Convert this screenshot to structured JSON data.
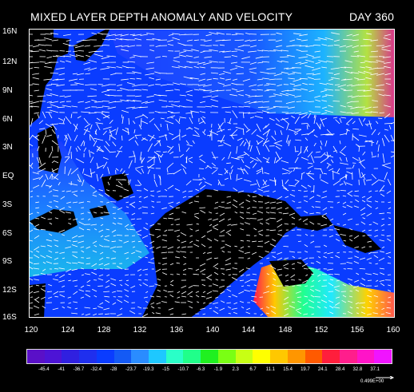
{
  "title": "MIXED  LAYER  DEPTH ANOMALY AND VELOCITY",
  "day": "DAY 360",
  "y_axis": {
    "labels": [
      "16N",
      "12N",
      "9N",
      "6N",
      "3N",
      "EQ",
      "3S",
      "6S",
      "9S",
      "12S",
      "16S"
    ]
  },
  "x_axis": {
    "labels": [
      "120",
      "124",
      "128",
      "132",
      "136",
      "140",
      "144",
      "148",
      "152",
      "156",
      "160"
    ]
  },
  "colorbar": {
    "colors": [
      "#5a10c8",
      "#4d14d6",
      "#3020e0",
      "#1f2fee",
      "#0a3cff",
      "#145af5",
      "#2a8cff",
      "#1ec8ff",
      "#2affc8",
      "#20ff8a",
      "#20f020",
      "#7aff14",
      "#c8ff14",
      "#ffff00",
      "#ffc800",
      "#ff9600",
      "#ff5a00",
      "#ff1e3c",
      "#ff1e8c",
      "#ff14c8",
      "#f014ff"
    ],
    "tick_labels": [
      "-45.4",
      "-41",
      "-36.7",
      "-32.4",
      "-28",
      "-23.7",
      "-19.3",
      "-15",
      "-10.7",
      "-6.3",
      "-1.9",
      "2.3",
      "6.7",
      "11.1",
      "15.4",
      "19.7",
      "24.1",
      "28.4",
      "32.8",
      "37.1"
    ],
    "scale_reference": "0.499E+00"
  }
}
